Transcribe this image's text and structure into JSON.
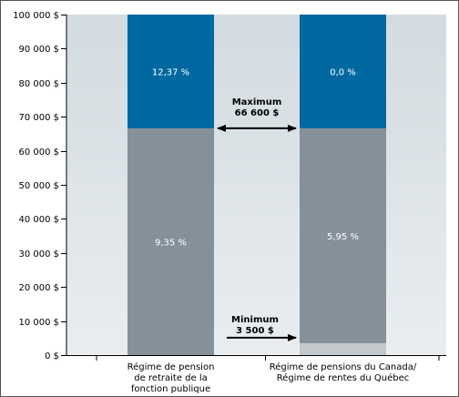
{
  "chart_data": {
    "type": "bar",
    "stacked": true,
    "title": "",
    "xlabel": "",
    "ylabel": "",
    "ylim": [
      0,
      100000
    ],
    "y_ticks": [
      0,
      10000,
      20000,
      30000,
      40000,
      50000,
      60000,
      70000,
      80000,
      90000,
      100000
    ],
    "y_tick_labels": [
      "0 $",
      "10 000 $",
      "20 000 $",
      "30 000 $",
      "40 000 $",
      "50 000 $",
      "60 000 $",
      "70 000 $",
      "80 000 $",
      "90 000 $",
      "100 000 $"
    ],
    "grid": false,
    "categories": [
      [
        "Régime de pension",
        "de retraite de la",
        "fonction publique"
      ],
      [
        "Régime de pensions du Canada/",
        "Régime de rentes du Québec"
      ]
    ],
    "segments": [
      {
        "category_index": 0,
        "y_start": 0,
        "y_end": 66600,
        "label": "9,35 %",
        "color": "#84909a"
      },
      {
        "category_index": 0,
        "y_start": 66600,
        "y_end": 100000,
        "label": "12,37 %",
        "color": "#0068a0"
      },
      {
        "category_index": 1,
        "y_start": 0,
        "y_end": 3500,
        "label": "",
        "color": "#c2c8cc"
      },
      {
        "category_index": 1,
        "y_start": 3500,
        "y_end": 66600,
        "label": "5,95 %",
        "color": "#84909a"
      },
      {
        "category_index": 1,
        "y_start": 66600,
        "y_end": 100000,
        "label": "0,0 %",
        "color": "#0068a0"
      }
    ],
    "annotations": [
      {
        "lines": [
          "Maximum",
          "66 600 $"
        ],
        "value": 66600,
        "arrow": "double"
      },
      {
        "lines": [
          "Minimum",
          "3 500 $"
        ],
        "value": 3500,
        "arrow": "right"
      }
    ],
    "colors": {
      "plot_background_top": "#d2dbe0",
      "plot_background_bottom": "#e9edf0",
      "axis": "#000000",
      "frame": "#555555"
    }
  }
}
